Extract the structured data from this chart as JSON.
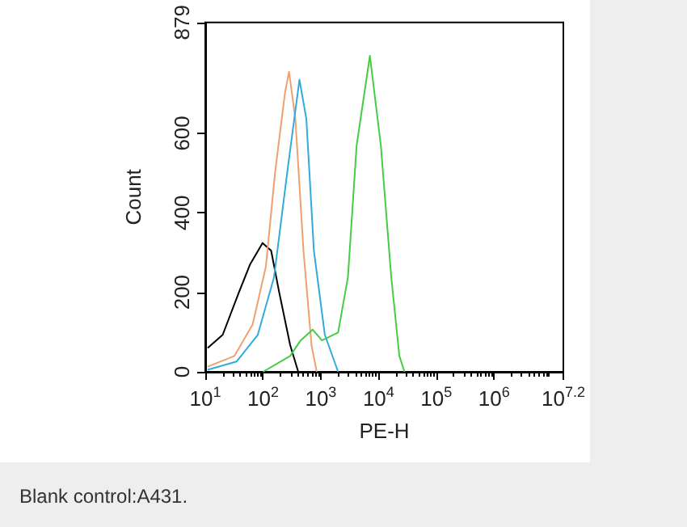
{
  "chart_data": {
    "type": "line",
    "xlabel": "PE-H",
    "ylabel": "Count",
    "log": "x",
    "xlim": [
      10,
      15848932
    ],
    "ylim": [
      0,
      879
    ],
    "xticks": [
      {
        "value": 10,
        "label": "10$^{1}$"
      },
      {
        "value": 100,
        "label": "10$^{2}$"
      },
      {
        "value": 1000,
        "label": "10$^{3}$"
      },
      {
        "value": 10000,
        "label": "10$^{4}$"
      },
      {
        "value": 100000,
        "label": "10$^{5}$"
      },
      {
        "value": 1000000,
        "label": "10$^{6}$"
      },
      {
        "value": 15848932,
        "label": "10$^{7.2}$"
      }
    ],
    "yticks": [
      0,
      200,
      400,
      600,
      879
    ],
    "grid": false,
    "marker": "none",
    "line_style": "solid",
    "annotations": [
      "Blank control:A431."
    ],
    "series": [
      {
        "color": "#000000",
        "x": [
          11,
          20,
          38,
          60,
          98,
          138,
          191,
          295,
          407
        ],
        "values": [
          60,
          93,
          199,
          271,
          324,
          305,
          199,
          67,
          0
        ]
      },
      {
        "color": "#f0a070",
        "x": [
          11,
          32,
          66,
          112,
          162,
          240,
          282,
          363,
          501,
          692,
          851
        ],
        "values": [
          13,
          40,
          119,
          265,
          503,
          702,
          755,
          636,
          305,
          66,
          0
        ]
      },
      {
        "color": "#33aadd",
        "x": [
          11,
          35,
          81,
          155,
          263,
          427,
          562,
          759,
          1175,
          1995
        ],
        "values": [
          5,
          26,
          93,
          238,
          503,
          735,
          636,
          305,
          93,
          0
        ]
      },
      {
        "color": "#44cc44",
        "x": [
          100,
          295,
          447,
          724,
          1047,
          1995,
          2951,
          4169,
          7079,
          10965,
          16596,
          22909,
          28184
        ],
        "values": [
          0,
          40,
          79,
          106,
          79,
          99,
          238,
          569,
          795,
          569,
          238,
          40,
          0
        ]
      }
    ]
  }
}
